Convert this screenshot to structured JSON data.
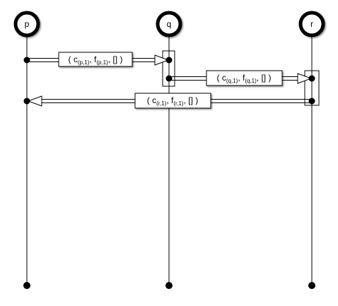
{
  "processes": [
    {
      "id": "p",
      "label": "p"
    },
    {
      "id": "q",
      "label": "q"
    },
    {
      "id": "r",
      "label": "r"
    }
  ],
  "messages": [
    {
      "from": "p",
      "to": "q",
      "text": {
        "open": "( c",
        "sub1": "(p,1)",
        "mid": ", f",
        "sub2": "(p,1)",
        "end": ", [] )"
      }
    },
    {
      "from": "q",
      "to": "r",
      "text": {
        "open": "( c",
        "sub1": "(q,1)",
        "mid": ", f",
        "sub2": "(q,1)",
        "end": ", [] )"
      }
    },
    {
      "from": "r",
      "to": "p",
      "text": {
        "open": "( c",
        "sub1": "(r,1)",
        "mid": ", f",
        "sub2": "(r,1)",
        "end": ", [] )"
      }
    }
  ]
}
